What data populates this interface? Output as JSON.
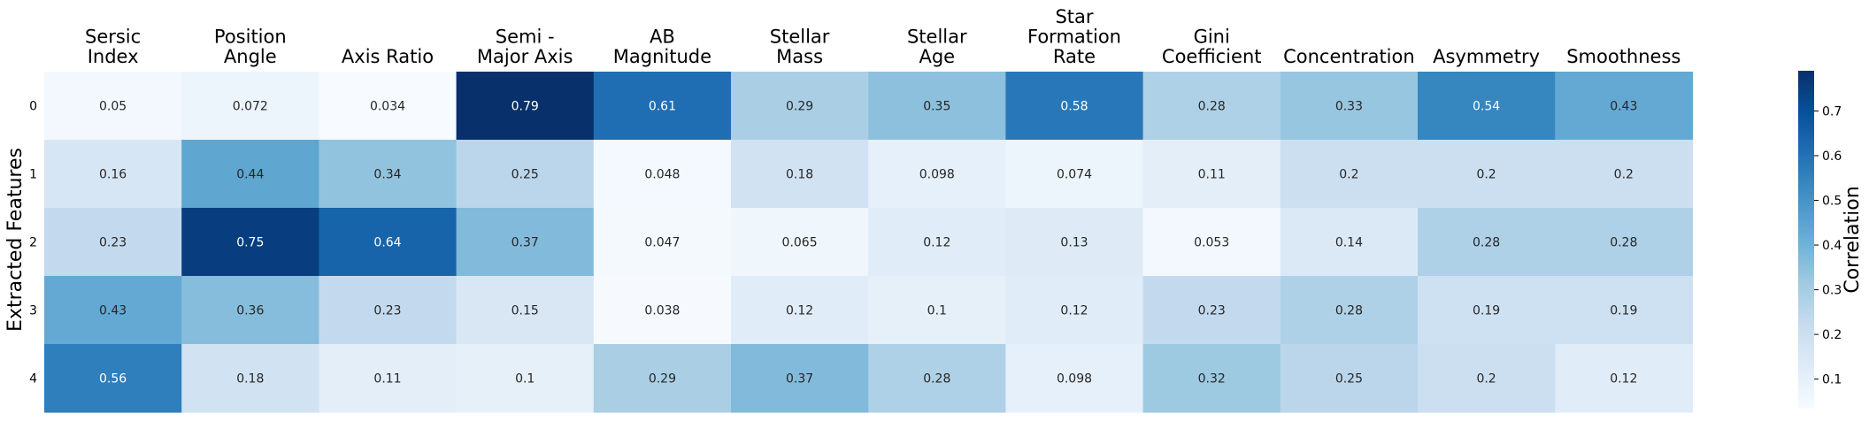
{
  "chart_data": {
    "type": "heatmap",
    "columns": [
      [
        "Sersic",
        "Index"
      ],
      [
        "Position",
        "Angle"
      ],
      [
        "Axis Ratio"
      ],
      [
        "Semi -",
        "Major Axis"
      ],
      [
        "AB",
        "Magnitude"
      ],
      [
        "Stellar",
        "Mass"
      ],
      [
        "Stellar",
        "Age"
      ],
      [
        "Star",
        "Formation",
        "Rate"
      ],
      [
        "Gini",
        "Coefficient"
      ],
      [
        "Concentration"
      ],
      [
        "Asymmetry"
      ],
      [
        "Smoothness"
      ]
    ],
    "rows": [
      "0",
      "1",
      "2",
      "3",
      "4"
    ],
    "values": [
      [
        0.05,
        0.072,
        0.034,
        0.79,
        0.61,
        0.29,
        0.35,
        0.58,
        0.28,
        0.33,
        0.54,
        0.43
      ],
      [
        0.16,
        0.44,
        0.34,
        0.25,
        0.048,
        0.18,
        0.098,
        0.074,
        0.11,
        0.2,
        0.2,
        0.2
      ],
      [
        0.23,
        0.75,
        0.64,
        0.37,
        0.047,
        0.065,
        0.12,
        0.13,
        0.053,
        0.14,
        0.28,
        0.28
      ],
      [
        0.43,
        0.36,
        0.23,
        0.15,
        0.038,
        0.12,
        0.1,
        0.12,
        0.23,
        0.28,
        0.19,
        0.19
      ],
      [
        0.56,
        0.18,
        0.11,
        0.1,
        0.29,
        0.37,
        0.28,
        0.098,
        0.32,
        0.25,
        0.2,
        0.12
      ]
    ],
    "ylabel": "Extracted Features",
    "colorbar": {
      "label": "Correlation",
      "range": [
        0.034,
        0.79
      ],
      "ticks": [
        0.1,
        0.2,
        0.3,
        0.4,
        0.5,
        0.6,
        0.7
      ],
      "colormap": "Blues"
    },
    "annotations": true,
    "grid": false
  }
}
